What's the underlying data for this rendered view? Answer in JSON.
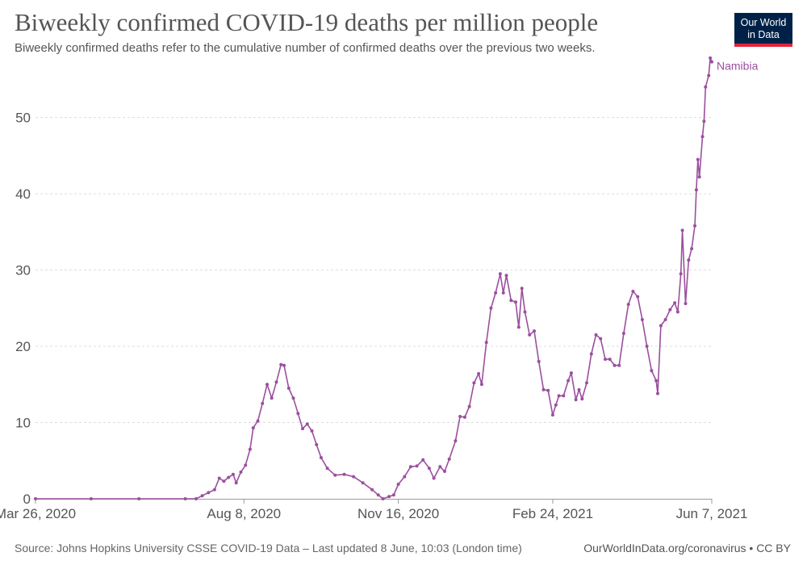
{
  "title": "Biweekly confirmed COVID-19 deaths per million people",
  "subtitle": "Biweekly confirmed deaths refer to the cumulative number of confirmed deaths over the previous two weeks.",
  "logo": {
    "line1": "Our World",
    "line2": "in Data"
  },
  "source": "Source: Johns Hopkins University CSSE COVID-19 Data – Last updated 8 June, 10:03 (London time)",
  "credit": "OurWorldInData.org/coronavirus • CC BY",
  "colors": {
    "series": "#9b4f9e",
    "grid": "#dddddd",
    "axis": "#999999",
    "tick_text": "#555555"
  },
  "chart_data": {
    "type": "line",
    "title": "Biweekly confirmed COVID-19 deaths per million people",
    "xlabel": "",
    "ylabel": "",
    "x_range": [
      "2020-03-26",
      "2021-06-07"
    ],
    "ylim": [
      0,
      58
    ],
    "y_ticks": [
      0,
      10,
      20,
      30,
      40,
      50
    ],
    "x_ticks": [
      {
        "date": "2020-03-26",
        "label": "Mar 26, 2020"
      },
      {
        "date": "2020-08-08",
        "label": "Aug 8, 2020"
      },
      {
        "date": "2020-11-16",
        "label": "Nov 16, 2020"
      },
      {
        "date": "2021-02-24",
        "label": "Feb 24, 2021"
      },
      {
        "date": "2021-06-07",
        "label": "Jun 7, 2021"
      }
    ],
    "grid": true,
    "series": [
      {
        "name": "Namibia",
        "points": [
          [
            "2020-03-26",
            0
          ],
          [
            "2020-05-01",
            0
          ],
          [
            "2020-06-01",
            0
          ],
          [
            "2020-07-01",
            0
          ],
          [
            "2020-07-08",
            0
          ],
          [
            "2020-07-12",
            0.4
          ],
          [
            "2020-07-16",
            0.8
          ],
          [
            "2020-07-20",
            1.2
          ],
          [
            "2020-07-23",
            2.7
          ],
          [
            "2020-07-26",
            2.3
          ],
          [
            "2020-07-29",
            2.8
          ],
          [
            "2020-08-01",
            3.2
          ],
          [
            "2020-08-03",
            2.1
          ],
          [
            "2020-08-06",
            3.5
          ],
          [
            "2020-08-09",
            4.4
          ],
          [
            "2020-08-12",
            6.5
          ],
          [
            "2020-08-14",
            9.3
          ],
          [
            "2020-08-17",
            10.2
          ],
          [
            "2020-08-20",
            12.5
          ],
          [
            "2020-08-23",
            15.0
          ],
          [
            "2020-08-26",
            13.2
          ],
          [
            "2020-08-29",
            15.3
          ],
          [
            "2020-09-01",
            17.6
          ],
          [
            "2020-09-03",
            17.5
          ],
          [
            "2020-09-06",
            14.5
          ],
          [
            "2020-09-09",
            13.2
          ],
          [
            "2020-09-12",
            11.2
          ],
          [
            "2020-09-15",
            9.2
          ],
          [
            "2020-09-18",
            9.8
          ],
          [
            "2020-09-21",
            8.9
          ],
          [
            "2020-09-24",
            7.1
          ],
          [
            "2020-09-27",
            5.4
          ],
          [
            "2020-10-01",
            4.0
          ],
          [
            "2020-10-06",
            3.1
          ],
          [
            "2020-10-12",
            3.2
          ],
          [
            "2020-10-18",
            2.9
          ],
          [
            "2020-10-24",
            2.1
          ],
          [
            "2020-10-30",
            1.2
          ],
          [
            "2020-11-03",
            0.5
          ],
          [
            "2020-11-06",
            0.0
          ],
          [
            "2020-11-10",
            0.3
          ],
          [
            "2020-11-13",
            0.5
          ],
          [
            "2020-11-16",
            1.9
          ],
          [
            "2020-11-20",
            2.9
          ],
          [
            "2020-11-24",
            4.2
          ],
          [
            "2020-11-28",
            4.3
          ],
          [
            "2020-12-02",
            5.1
          ],
          [
            "2020-12-06",
            4.0
          ],
          [
            "2020-12-09",
            2.7
          ],
          [
            "2020-12-13",
            4.2
          ],
          [
            "2020-12-16",
            3.6
          ],
          [
            "2020-12-19",
            5.2
          ],
          [
            "2020-12-23",
            7.6
          ],
          [
            "2020-12-26",
            10.8
          ],
          [
            "2020-12-29",
            10.7
          ],
          [
            "2021-01-01",
            12.1
          ],
          [
            "2021-01-04",
            15.2
          ],
          [
            "2021-01-07",
            16.4
          ],
          [
            "2021-01-09",
            15.0
          ],
          [
            "2021-01-12",
            20.5
          ],
          [
            "2021-01-15",
            25.0
          ],
          [
            "2021-01-18",
            27.0
          ],
          [
            "2021-01-21",
            29.5
          ],
          [
            "2021-01-23",
            27.0
          ],
          [
            "2021-01-25",
            29.3
          ],
          [
            "2021-01-28",
            26.0
          ],
          [
            "2021-01-31",
            25.8
          ],
          [
            "2021-02-02",
            22.5
          ],
          [
            "2021-02-04",
            27.6
          ],
          [
            "2021-02-06",
            24.5
          ],
          [
            "2021-02-09",
            21.5
          ],
          [
            "2021-02-12",
            22.0
          ],
          [
            "2021-02-15",
            18.0
          ],
          [
            "2021-02-18",
            14.3
          ],
          [
            "2021-02-21",
            14.2
          ],
          [
            "2021-02-24",
            11.0
          ],
          [
            "2021-02-26",
            12.3
          ],
          [
            "2021-02-28",
            13.5
          ],
          [
            "2021-03-03",
            13.5
          ],
          [
            "2021-03-06",
            15.5
          ],
          [
            "2021-03-08",
            16.5
          ],
          [
            "2021-03-11",
            13.0
          ],
          [
            "2021-03-13",
            14.3
          ],
          [
            "2021-03-15",
            13.1
          ],
          [
            "2021-03-18",
            15.2
          ],
          [
            "2021-03-21",
            19.0
          ],
          [
            "2021-03-24",
            21.5
          ],
          [
            "2021-03-27",
            21.0
          ],
          [
            "2021-03-30",
            18.3
          ],
          [
            "2021-04-02",
            18.3
          ],
          [
            "2021-04-05",
            17.5
          ],
          [
            "2021-04-08",
            17.5
          ],
          [
            "2021-04-11",
            21.7
          ],
          [
            "2021-04-14",
            25.5
          ],
          [
            "2021-04-17",
            27.2
          ],
          [
            "2021-04-20",
            26.5
          ],
          [
            "2021-04-23",
            23.5
          ],
          [
            "2021-04-26",
            20.0
          ],
          [
            "2021-04-29",
            16.8
          ],
          [
            "2021-05-02",
            15.5
          ],
          [
            "2021-05-03",
            13.8
          ],
          [
            "2021-05-05",
            22.7
          ],
          [
            "2021-05-08",
            23.5
          ],
          [
            "2021-05-11",
            24.8
          ],
          [
            "2021-05-14",
            25.7
          ],
          [
            "2021-05-16",
            24.5
          ],
          [
            "2021-05-18",
            29.5
          ],
          [
            "2021-05-19",
            35.2
          ],
          [
            "2021-05-21",
            25.6
          ],
          [
            "2021-05-23",
            31.3
          ],
          [
            "2021-05-25",
            32.8
          ],
          [
            "2021-05-27",
            35.8
          ],
          [
            "2021-05-28",
            40.5
          ],
          [
            "2021-05-29",
            44.5
          ],
          [
            "2021-05-30",
            42.2
          ],
          [
            "2021-06-01",
            47.5
          ],
          [
            "2021-06-02",
            49.5
          ],
          [
            "2021-06-03",
            54.0
          ],
          [
            "2021-06-05",
            55.5
          ],
          [
            "2021-06-06",
            57.8
          ],
          [
            "2021-06-07",
            57.3
          ]
        ]
      }
    ]
  }
}
